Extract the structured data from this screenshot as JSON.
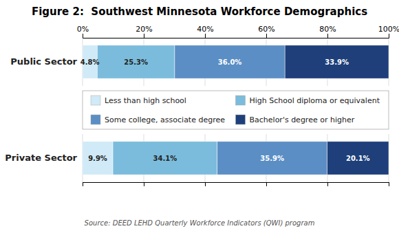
{
  "chart_data": {
    "type": "bar",
    "orientation": "horizontal",
    "stacked": true,
    "title": "Figure 2:  Southwest Minnesota Workforce Demographics",
    "categories": [
      "Public Sector",
      "Private Sector"
    ],
    "series": [
      {
        "name": "Less than high school",
        "color": "#d0eaf7",
        "values": [
          4.8,
          9.9
        ],
        "value_labels": [
          "4.8%",
          "9.9%"
        ]
      },
      {
        "name": "High School diploma or equivalent",
        "color": "#7bbcdc",
        "values": [
          25.3,
          34.1
        ],
        "value_labels": [
          "25.3%",
          "34.1%"
        ]
      },
      {
        "name": "Some college, associate degree",
        "color": "#5b8ec4",
        "values": [
          36.0,
          35.9
        ],
        "value_labels": [
          "36.0%",
          "35.9%"
        ]
      },
      {
        "name": "Bachelor's degree or higher",
        "color": "#1e3f7a",
        "values": [
          33.9,
          20.1
        ],
        "value_labels": [
          "33.9%",
          "20.1%"
        ]
      }
    ],
    "xlim": [
      0,
      100
    ],
    "xticks": [
      {
        "value": 0,
        "label": "0%"
      },
      {
        "value": 20,
        "label": "20%"
      },
      {
        "value": 40,
        "label": "40%"
      },
      {
        "value": 60,
        "label": "60%"
      },
      {
        "value": 80,
        "label": "80%"
      },
      {
        "value": 100,
        "label": "100%"
      }
    ],
    "grid": true,
    "data_labels": true,
    "legend": "center",
    "annotations": [
      "Source: DEED LEHD Quarterly Workforce Indicators (QWI) program"
    ]
  }
}
